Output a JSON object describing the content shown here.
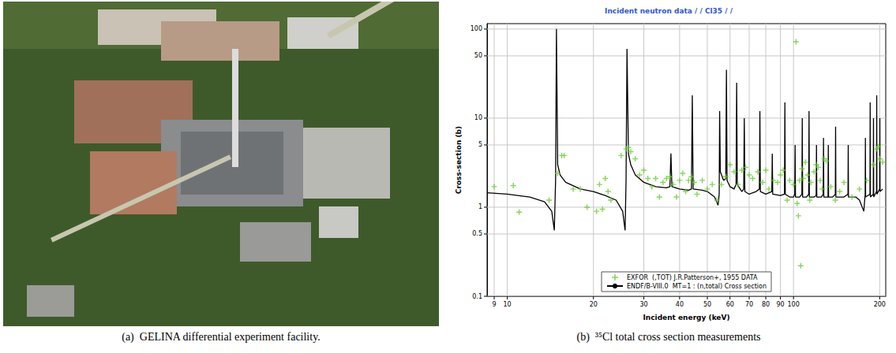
{
  "chart_data": {
    "type": "line",
    "title": "Incident neutron data / / Cl35 / /",
    "x_label": "Incident energy (keV)",
    "y_label": "Cross-section (b)",
    "log": true,
    "grid": true,
    "legend": "bottom",
    "xlim": [
      8.5,
      210
    ],
    "xticks": [
      9,
      10,
      20,
      30,
      40,
      50,
      60,
      70,
      80,
      90,
      100,
      200
    ],
    "ylim": [
      0.1,
      115
    ],
    "yticks": [
      0.1,
      0.5,
      1,
      5,
      10,
      50,
      100
    ],
    "series": [
      {
        "name": "EXFOR  (,TOT) J.R.Patterson+, 1955 DATA",
        "type": "scatter",
        "marker": "plus",
        "color": "#66cc33",
        "x": [
          9,
          10.5,
          11,
          14,
          15,
          15.5,
          15.8,
          17,
          18,
          19,
          20.5,
          21,
          21.5,
          22,
          22.5,
          23,
          25,
          26,
          26.5,
          27,
          28,
          29,
          30,
          31,
          32,
          33,
          34,
          35,
          36,
          37,
          38,
          39,
          40,
          41,
          42,
          43,
          44,
          45,
          46,
          48,
          50,
          52,
          54,
          56,
          58,
          60,
          62,
          64,
          66,
          68,
          70,
          72,
          75,
          78,
          80,
          82,
          85,
          88,
          90,
          92,
          95,
          97,
          100,
          102,
          103,
          104,
          105,
          106,
          107,
          108,
          110,
          112,
          114,
          115,
          118,
          120,
          122,
          124,
          126,
          128,
          130,
          135,
          140,
          145,
          150,
          160,
          170,
          180,
          190,
          195,
          198,
          200,
          205
        ],
        "values": [
          1.7,
          1.75,
          0.88,
          1.2,
          2.4,
          3.8,
          3.8,
          1.6,
          1.6,
          1.0,
          0.9,
          1.8,
          0.95,
          2.1,
          1.5,
          1.2,
          3.8,
          4.5,
          4.7,
          4.2,
          3.5,
          2.3,
          2.6,
          2.1,
          1.7,
          2.1,
          1.3,
          1.9,
          2.1,
          2.2,
          1.8,
          1.3,
          2.0,
          2.4,
          1.5,
          2.0,
          2.2,
          1.9,
          1.4,
          2.0,
          1.6,
          1.8,
          1.2,
          1.8,
          2.2,
          3.0,
          2.5,
          1.8,
          2.6,
          2.8,
          2.3,
          2.1,
          2.5,
          1.9,
          2.6,
          1.6,
          2.0,
          1.9,
          2.3,
          2.6,
          1.2,
          2.0,
          1.8,
          72,
          1.1,
          0.8,
          2.0,
          0.22,
          2.7,
          2.1,
          3.2,
          2.3,
          1.2,
          1.9,
          2.5,
          3.0,
          2.8,
          2.0,
          1.6,
          3.5,
          3.3,
          1.7,
          1.2,
          1.5,
          1.9,
          1.3,
          1.6,
          2.0,
          3.0,
          4.5,
          4.8,
          3.5,
          3.2
        ]
      },
      {
        "name": "ENDF/B-VIII.0  MT=1 : (n,total) Cross section",
        "type": "line",
        "line_style": "solid",
        "color": "#000000",
        "x": [
          8.5,
          10,
          12,
          13.5,
          14.3,
          14.6,
          14.75,
          14.85,
          15,
          15.3,
          16,
          18,
          20,
          22,
          24,
          25.3,
          25.8,
          26,
          26.2,
          26.5,
          27,
          28,
          30,
          33,
          36,
          37,
          37.3,
          37.6,
          40,
          43,
          44,
          44.3,
          44.6,
          48,
          50,
          53,
          54.5,
          55,
          55.2,
          55.5,
          57,
          58,
          58.3,
          58.6,
          60,
          62,
          63,
          63.3,
          63.6,
          66,
          67,
          67.3,
          67.6,
          70,
          74,
          76,
          76.3,
          76.6,
          80,
          84,
          84.3,
          84.6,
          90,
          93,
          93.3,
          93.6,
          97,
          100,
          101,
          101.3,
          101.6,
          105,
          107,
          107.3,
          107.6,
          111,
          113,
          113.3,
          113.6,
          118,
          120,
          120.3,
          120.6,
          125,
          127,
          127.3,
          127.6,
          132,
          132.3,
          132.6,
          137,
          140,
          140.3,
          140.6,
          150,
          155,
          155.3,
          155.6,
          165,
          170,
          176,
          178,
          178.3,
          178.6,
          185,
          185.3,
          185.6,
          190,
          190.3,
          190.6,
          195,
          195.3,
          195.6,
          200,
          200.3,
          200.6,
          205
        ],
        "values": [
          1.45,
          1.4,
          1.3,
          1.15,
          0.9,
          0.55,
          2,
          100,
          3,
          2.3,
          1.9,
          1.6,
          1.5,
          1.35,
          1.2,
          0.9,
          0.55,
          2,
          60,
          4,
          3,
          2.3,
          1.9,
          1.7,
          1.65,
          1.7,
          4,
          1.7,
          1.6,
          1.55,
          1.6,
          18,
          1.6,
          1.55,
          1.5,
          1.3,
          1.05,
          1.4,
          12,
          2.5,
          2,
          2.1,
          35,
          2,
          1.7,
          1.6,
          1.8,
          25,
          1.8,
          1.5,
          1.6,
          10,
          1.5,
          1.4,
          1.5,
          1.6,
          12,
          1.5,
          1.4,
          1.5,
          4,
          1.4,
          1.35,
          1.4,
          15,
          1.4,
          1.3,
          1.3,
          1.4,
          5,
          1.3,
          1.3,
          1.4,
          10,
          1.3,
          1.3,
          1.4,
          12,
          1.3,
          1.3,
          1.35,
          5,
          1.3,
          1.3,
          1.4,
          6,
          1.3,
          1.3,
          5,
          1.3,
          1.3,
          1.4,
          8,
          1.3,
          1.3,
          1.4,
          5,
          1.3,
          1.3,
          1.2,
          0.9,
          1.4,
          6,
          1.3,
          1.4,
          15,
          1.3,
          1.4,
          10,
          1.3,
          1.5,
          18,
          1.4,
          1.6,
          10,
          1.5,
          1.6
        ]
      }
    ]
  },
  "captions": [
    "(a)  GELINA differential experiment facility.",
    "(b)  ³⁵Cl total cross section measurements"
  ]
}
